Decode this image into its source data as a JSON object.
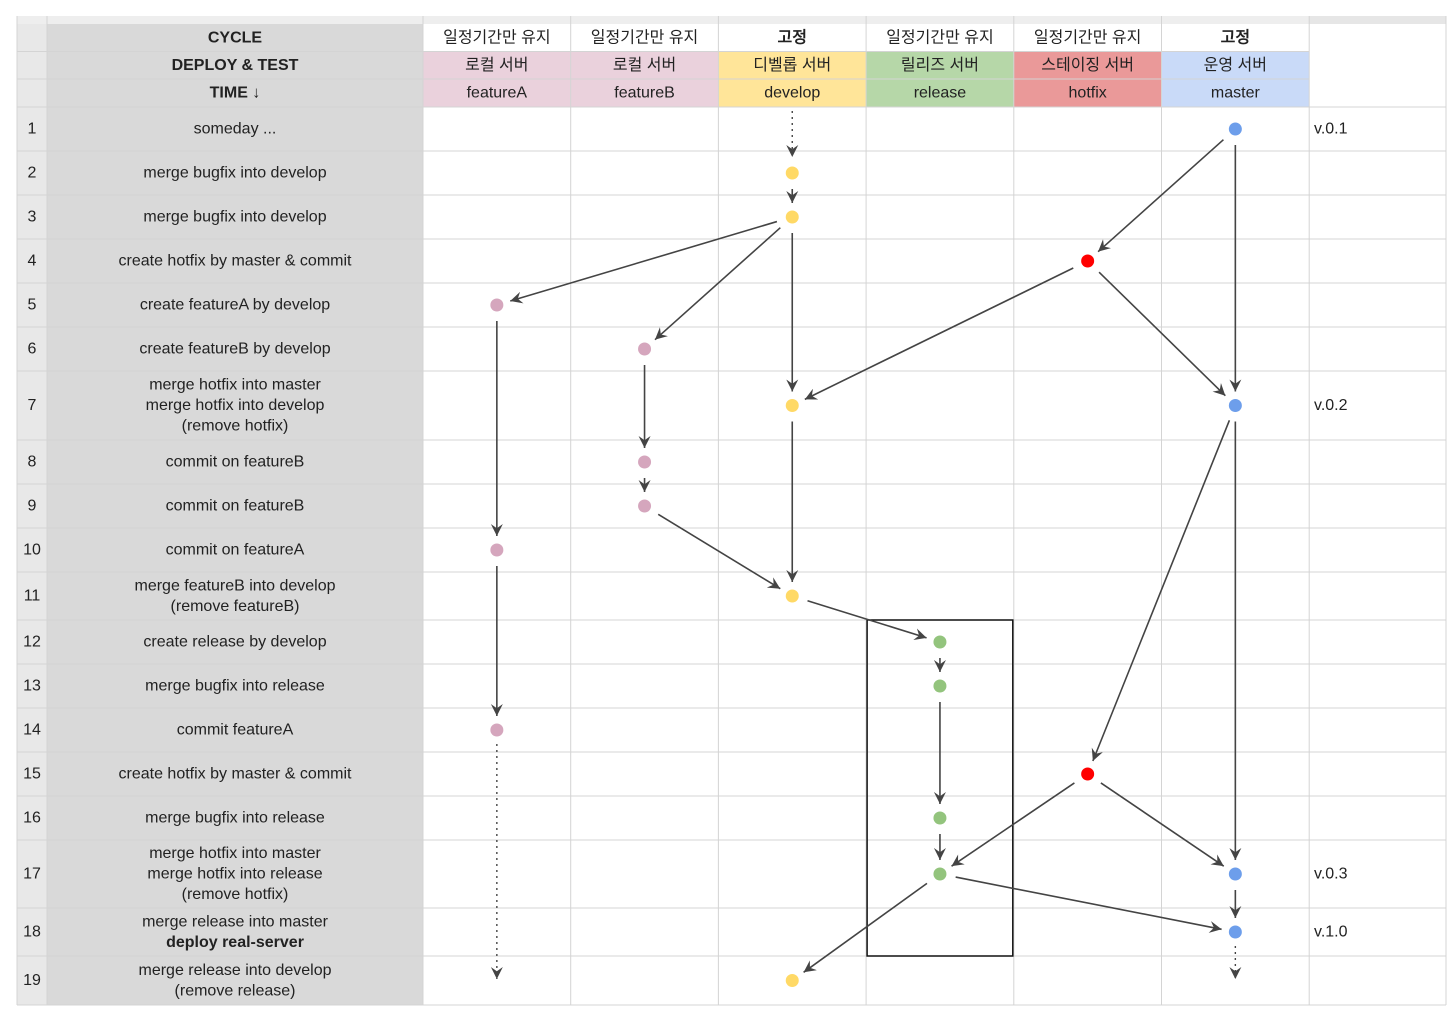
{
  "columns": [
    {
      "id": "featureA",
      "cycle": "일정기간만 유지",
      "cycle_bold": false,
      "deploy": "로컬 서버",
      "branch": "featureA",
      "color": "#ead1dc"
    },
    {
      "id": "featureB",
      "cycle": "일정기간만 유지",
      "cycle_bold": false,
      "deploy": "로컬 서버",
      "branch": "featureB",
      "color": "#ead1dc"
    },
    {
      "id": "develop",
      "cycle": "고정",
      "cycle_bold": true,
      "deploy": "디벨롭 서버",
      "branch": "develop",
      "color": "#ffe599"
    },
    {
      "id": "release",
      "cycle": "일정기간만 유지",
      "cycle_bold": false,
      "deploy": "릴리즈 서버",
      "branch": "release",
      "color": "#b6d7a8"
    },
    {
      "id": "hotfix",
      "cycle": "일정기간만 유지",
      "cycle_bold": false,
      "deploy": "스테이징 서버",
      "branch": "hotfix",
      "color": "#ea9999"
    },
    {
      "id": "master",
      "cycle": "고정",
      "cycle_bold": true,
      "deploy": "운영 서버",
      "branch": "master",
      "color": "#c9daf8"
    }
  ],
  "header_labels": {
    "cycle": "CYCLE",
    "deploy": "DEPLOY & TEST",
    "time": "TIME ↓"
  },
  "rows": [
    {
      "num": "1",
      "lines": [
        "someday ..."
      ]
    },
    {
      "num": "2",
      "lines": [
        "merge bugfix into develop"
      ]
    },
    {
      "num": "3",
      "lines": [
        "merge bugfix into develop"
      ]
    },
    {
      "num": "4",
      "lines": [
        "create hotfix by master & commit"
      ]
    },
    {
      "num": "5",
      "lines": [
        "create featureA by develop"
      ]
    },
    {
      "num": "6",
      "lines": [
        "create featureB by develop"
      ]
    },
    {
      "num": "7",
      "lines": [
        "merge hotfix into master",
        "merge hotfix into develop",
        "(remove hotfix)"
      ]
    },
    {
      "num": "8",
      "lines": [
        "commit on featureB"
      ]
    },
    {
      "num": "9",
      "lines": [
        "commit on featureB"
      ]
    },
    {
      "num": "10",
      "lines": [
        "commit on featureA"
      ]
    },
    {
      "num": "11",
      "lines": [
        "merge featureB into develop",
        "(remove featureB)"
      ]
    },
    {
      "num": "12",
      "lines": [
        "create release by develop"
      ]
    },
    {
      "num": "13",
      "lines": [
        "merge bugfix into release"
      ]
    },
    {
      "num": "14",
      "lines": [
        "commit featureA"
      ]
    },
    {
      "num": "15",
      "lines": [
        "create hotfix by master & commit"
      ]
    },
    {
      "num": "16",
      "lines": [
        "merge bugfix into release"
      ]
    },
    {
      "num": "17",
      "lines": [
        "merge hotfix into master",
        "merge hotfix into release",
        "(remove hotfix)"
      ]
    },
    {
      "num": "18",
      "lines": [
        "merge release into master",
        "deploy real-server"
      ],
      "bold_line": 1
    },
    {
      "num": "19",
      "lines": [
        "merge release into develop",
        "(remove release)"
      ]
    }
  ],
  "versions": [
    {
      "row": 1,
      "label": "v.0.1"
    },
    {
      "row": 7,
      "label": "v.0.2"
    },
    {
      "row": 17,
      "label": "v.0.3"
    },
    {
      "row": 18,
      "label": "v.1.0"
    }
  ],
  "dot_colors": {
    "featureA": "#d5a6bd",
    "featureB": "#d5a6bd",
    "develop": "#ffd966",
    "release": "#93c47d",
    "hotfix": "#ff0000",
    "master": "#6d9eeb"
  },
  "commits": [
    {
      "id": "m1",
      "col": "master",
      "row": 1
    },
    {
      "id": "d2",
      "col": "develop",
      "row": 2
    },
    {
      "id": "d3",
      "col": "develop",
      "row": 3
    },
    {
      "id": "h4",
      "col": "hotfix",
      "row": 4
    },
    {
      "id": "a5",
      "col": "featureA",
      "row": 5
    },
    {
      "id": "b6",
      "col": "featureB",
      "row": 6
    },
    {
      "id": "d7",
      "col": "develop",
      "row": 7
    },
    {
      "id": "m7",
      "col": "master",
      "row": 7
    },
    {
      "id": "b8",
      "col": "featureB",
      "row": 8
    },
    {
      "id": "b9",
      "col": "featureB",
      "row": 9
    },
    {
      "id": "a10",
      "col": "featureA",
      "row": 10
    },
    {
      "id": "d11",
      "col": "develop",
      "row": 11
    },
    {
      "id": "r12",
      "col": "release",
      "row": 12
    },
    {
      "id": "r13",
      "col": "release",
      "row": 13
    },
    {
      "id": "a14",
      "col": "featureA",
      "row": 14
    },
    {
      "id": "h15",
      "col": "hotfix",
      "row": 15
    },
    {
      "id": "r16",
      "col": "release",
      "row": 16
    },
    {
      "id": "r17",
      "col": "release",
      "row": 17
    },
    {
      "id": "m17",
      "col": "master",
      "row": 17
    },
    {
      "id": "m18",
      "col": "master",
      "row": 18
    },
    {
      "id": "d19",
      "col": "develop",
      "row": 19
    }
  ],
  "edges": [
    {
      "from": "m1",
      "to": "h4"
    },
    {
      "from": "m1",
      "to": "m7"
    },
    {
      "from": "d2",
      "to": "d3"
    },
    {
      "from": "d3",
      "to": "a5"
    },
    {
      "from": "d3",
      "to": "b6"
    },
    {
      "from": "d3",
      "to": "d7"
    },
    {
      "from": "h4",
      "to": "d7"
    },
    {
      "from": "h4",
      "to": "m7"
    },
    {
      "from": "b6",
      "to": "b8"
    },
    {
      "from": "b8",
      "to": "b9"
    },
    {
      "from": "b9",
      "to": "d11"
    },
    {
      "from": "a5",
      "to": "a10"
    },
    {
      "from": "a10",
      "to": "a14"
    },
    {
      "from": "d7",
      "to": "d11"
    },
    {
      "from": "d11",
      "to": "r12"
    },
    {
      "from": "r12",
      "to": "r13"
    },
    {
      "from": "r13",
      "to": "r16"
    },
    {
      "from": "r16",
      "to": "r17"
    },
    {
      "from": "m7",
      "to": "h15"
    },
    {
      "from": "m7",
      "to": "m17"
    },
    {
      "from": "h15",
      "to": "r17"
    },
    {
      "from": "h15",
      "to": "m17"
    },
    {
      "from": "r17",
      "to": "m18"
    },
    {
      "from": "m17",
      "to": "m18"
    },
    {
      "from": "r17",
      "to": "d19"
    }
  ],
  "continuations": [
    {
      "col": "develop",
      "kind": "in",
      "row": 2
    },
    {
      "col": "featureA",
      "kind": "out",
      "row": 14
    },
    {
      "col": "master",
      "kind": "out",
      "row": 18
    }
  ],
  "highlight_box": {
    "col": "release",
    "from_row": 12,
    "to_row": 18
  }
}
